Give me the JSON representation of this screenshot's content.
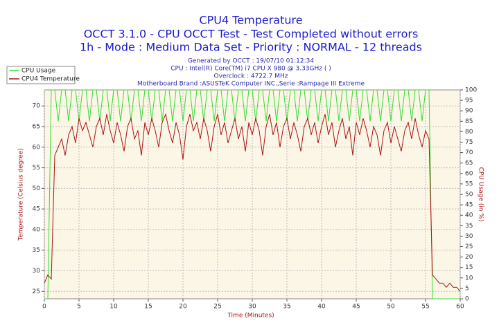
{
  "chart_data": {
    "type": "line",
    "title": "CPU4 Temperature",
    "subtitle": [
      "OCCT 3.1.0 - CPU OCCT Test - Test Completed without errors",
      "1h - Mode : Medium Data Set - Priority : NORMAL - 12 threads"
    ],
    "info": [
      "Generated by OCCT : 19/07/10 01:12:34",
      "CPU : Intel(R) Core(TM) i7 CPU X 980 @ 3.33GHz (  )",
      "Overclock : 4722.7 MHz",
      "Motherboard Brand :ASUSTeK Computer INC.,Serie :Rampage III Extreme"
    ],
    "xlabel": "Time (Minutes)",
    "ylabel": "Temperature (Celsius degree)",
    "y2label": "CPU Usage (in %)",
    "x": [
      0,
      0.5,
      1,
      1.5,
      2,
      2.5,
      3,
      3.5,
      4,
      4.5,
      5,
      5.5,
      6,
      6.5,
      7,
      7.5,
      8,
      8.5,
      9,
      9.5,
      10,
      10.5,
      11,
      11.5,
      12,
      12.5,
      13,
      13.5,
      14,
      14.5,
      15,
      15.5,
      16,
      16.5,
      17,
      17.5,
      18,
      18.5,
      19,
      19.5,
      20,
      20.5,
      21,
      21.5,
      22,
      22.5,
      23,
      23.5,
      24,
      24.5,
      25,
      25.5,
      26,
      26.5,
      27,
      27.5,
      28,
      28.5,
      29,
      29.5,
      30,
      30.5,
      31,
      31.5,
      32,
      32.5,
      33,
      33.5,
      34,
      34.5,
      35,
      35.5,
      36,
      36.5,
      37,
      37.5,
      38,
      38.5,
      39,
      39.5,
      40,
      40.5,
      41,
      41.5,
      42,
      42.5,
      43,
      43.5,
      44,
      44.5,
      45,
      45.5,
      46,
      46.5,
      47,
      47.5,
      48,
      48.5,
      49,
      49.5,
      50,
      50.5,
      51,
      51.5,
      52,
      52.5,
      53,
      53.5,
      54,
      54.5,
      55,
      55.5,
      56,
      56.5,
      57,
      57.5,
      58,
      58.5,
      59,
      59.5,
      60
    ],
    "series": [
      {
        "name": "CPU Usage",
        "color": "#33dd33",
        "axis": "y2",
        "values": [
          0,
          0,
          100,
          100,
          85,
          100,
          100,
          85,
          100,
          100,
          85,
          100,
          100,
          85,
          100,
          100,
          85,
          100,
          100,
          85,
          100,
          100,
          85,
          100,
          100,
          85,
          100,
          100,
          85,
          100,
          100,
          85,
          100,
          100,
          85,
          100,
          100,
          85,
          100,
          100,
          85,
          100,
          100,
          85,
          100,
          100,
          85,
          100,
          100,
          85,
          100,
          100,
          85,
          100,
          100,
          85,
          100,
          100,
          85,
          100,
          100,
          85,
          100,
          100,
          85,
          100,
          100,
          85,
          100,
          100,
          85,
          100,
          100,
          85,
          100,
          100,
          85,
          100,
          100,
          85,
          100,
          100,
          85,
          100,
          100,
          85,
          100,
          100,
          85,
          100,
          100,
          85,
          100,
          100,
          85,
          100,
          100,
          85,
          100,
          100,
          85,
          100,
          100,
          85,
          100,
          100,
          85,
          100,
          100,
          85,
          100,
          100,
          0,
          0,
          0,
          0,
          0,
          0,
          0,
          0,
          0
        ]
      },
      {
        "name": "CPU4 Temperature",
        "color": "#aa1111",
        "values": [
          27,
          29,
          28,
          58,
          60,
          62,
          58,
          63,
          65,
          61,
          67,
          64,
          66,
          63,
          60,
          65,
          67,
          63,
          68,
          64,
          61,
          66,
          63,
          59,
          65,
          67,
          62,
          64,
          58,
          66,
          63,
          67,
          64,
          60,
          66,
          68,
          64,
          61,
          66,
          63,
          57,
          65,
          68,
          64,
          66,
          62,
          67,
          64,
          59,
          65,
          68,
          63,
          66,
          61,
          64,
          67,
          62,
          65,
          59,
          66,
          63,
          67,
          64,
          58,
          65,
          68,
          63,
          66,
          60,
          65,
          67,
          62,
          66,
          63,
          59,
          65,
          67,
          63,
          66,
          61,
          65,
          68,
          63,
          66,
          60,
          64,
          67,
          62,
          65,
          58,
          66,
          63,
          67,
          64,
          60,
          65,
          63,
          58,
          64,
          66,
          61,
          65,
          62,
          59,
          64,
          66,
          62,
          67,
          63,
          60,
          64,
          62,
          29,
          28,
          27,
          27,
          26,
          27,
          26,
          26,
          25
        ]
      }
    ],
    "xlim": [
      0,
      60
    ],
    "xticks": [
      0,
      5,
      10,
      15,
      20,
      25,
      30,
      35,
      40,
      45,
      50,
      55,
      60
    ],
    "ylim": [
      23.2,
      73.9
    ],
    "yticks": [
      25,
      30,
      35,
      40,
      45,
      50,
      55,
      60,
      65,
      70
    ],
    "y2lim": [
      0,
      100
    ],
    "y2ticks": [
      0,
      5,
      10,
      15,
      20,
      25,
      30,
      35,
      40,
      45,
      50,
      55,
      60,
      65,
      70,
      75,
      80,
      85,
      90,
      95,
      100
    ],
    "grid": true,
    "legend": "top-left"
  }
}
